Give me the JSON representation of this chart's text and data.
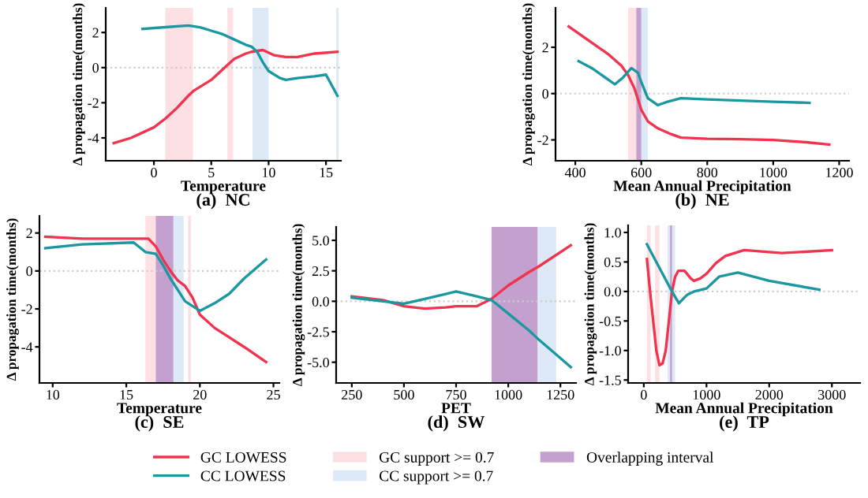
{
  "chart_data": [
    {
      "type": "line",
      "title": "(a)  NC",
      "xlabel": "Temperature",
      "ylabel": "Δ propagation time(months)",
      "legend": "bottom",
      "xlim": [
        -4.2,
        16.3
      ],
      "xticks": [
        0,
        5,
        10,
        15
      ],
      "ylim": [
        -5.3,
        3.4
      ],
      "yticks": [
        -4,
        -2,
        0,
        2
      ],
      "series": [
        {
          "name": "GC LOWESS",
          "color": "#f0344f",
          "x": [
            -3.5,
            -2,
            0,
            1,
            2,
            3,
            3.5,
            5,
            6,
            7,
            8,
            8.5,
            9.5,
            10.5,
            11.5,
            12.5,
            14,
            16
          ],
          "values": [
            -4.3,
            -4.0,
            -3.4,
            -2.9,
            -2.3,
            -1.6,
            -1.3,
            -0.7,
            -0.1,
            0.5,
            0.8,
            0.9,
            1.0,
            0.7,
            0.6,
            0.6,
            0.8,
            0.9
          ]
        },
        {
          "name": "CC LOWESS",
          "color": "#1b97a0",
          "x": [
            -1,
            1,
            3,
            4,
            5,
            6,
            7,
            8,
            8.5,
            9,
            9.5,
            10,
            11,
            11.5,
            12.5,
            14,
            15,
            16
          ],
          "values": [
            2.2,
            2.3,
            2.4,
            2.3,
            2.1,
            1.9,
            1.6,
            1.3,
            1.2,
            0.9,
            0.3,
            -0.2,
            -0.6,
            -0.7,
            -0.6,
            -0.5,
            -0.4,
            -1.6
          ]
        }
      ],
      "bands": [
        {
          "axis": "x",
          "from": 1.0,
          "to": 3.4,
          "color": "#fde0e4",
          "label": "GC support >= 0.7"
        },
        {
          "axis": "x",
          "from": 6.4,
          "to": 6.9,
          "color": "#fde0e4"
        },
        {
          "axis": "x",
          "from": 8.6,
          "to": 10.0,
          "color": "#dde9f6",
          "label": "CC support >= 0.7"
        },
        {
          "axis": "x",
          "from": 15.9,
          "to": 16.1,
          "color": "#dde9f6"
        }
      ],
      "ref_lines": [
        {
          "axis": "y",
          "value": 0,
          "color": "#cccccc",
          "line_style": "dotted"
        }
      ]
    },
    {
      "type": "line",
      "title": "(b)  NE",
      "xlabel": "Mean Annual Precipitation",
      "ylabel": "Δ propagation time(months)",
      "xlim": [
        340,
        1230
      ],
      "xticks": [
        400,
        600,
        800,
        1000,
        1200
      ],
      "ylim": [
        -2.9,
        3.7
      ],
      "yticks": [
        -2,
        0,
        2
      ],
      "series": [
        {
          "color": "#f0344f",
          "x": [
            380,
            420,
            460,
            500,
            540,
            560,
            580,
            600,
            620,
            650,
            690,
            720,
            800,
            900,
            1000,
            1100,
            1170
          ],
          "values": [
            2.9,
            2.5,
            2.1,
            1.7,
            1.2,
            0.8,
            0.2,
            -0.7,
            -1.2,
            -1.5,
            -1.75,
            -1.9,
            -1.95,
            -1.97,
            -2.0,
            -2.1,
            -2.2
          ]
        },
        {
          "color": "#1b97a0",
          "x": [
            410,
            450,
            500,
            520,
            545,
            570,
            590,
            600,
            620,
            650,
            680,
            720,
            800,
            900,
            1000,
            1110
          ],
          "values": [
            1.4,
            1.1,
            0.6,
            0.4,
            0.7,
            1.1,
            0.9,
            0.5,
            -0.2,
            -0.5,
            -0.35,
            -0.2,
            -0.25,
            -0.3,
            -0.35,
            -0.4
          ]
        }
      ],
      "bands": [
        {
          "axis": "x",
          "from": 560,
          "to": 590,
          "color": "#fde0e4"
        },
        {
          "axis": "x",
          "from": 600,
          "to": 620,
          "color": "#dde9f6"
        },
        {
          "axis": "x",
          "from": 585,
          "to": 600,
          "color": "#c4a0cf"
        }
      ],
      "ref_lines": [
        {
          "axis": "y",
          "value": 0,
          "color": "#cccccc",
          "line_style": "dotted"
        }
      ]
    },
    {
      "type": "line",
      "title": "(c)  SE",
      "xlabel": "Temperature",
      "ylabel": "Δ propagation time(months)",
      "xlim": [
        9.1,
        25.4
      ],
      "xticks": [
        10,
        15,
        20,
        25
      ],
      "ylim": [
        -5.9,
        2.9
      ],
      "yticks": [
        -4,
        -2,
        0,
        2
      ],
      "series": [
        {
          "color": "#f0344f",
          "x": [
            9.5,
            12,
            15,
            16.5,
            17,
            17.5,
            18,
            18.5,
            19,
            19.5,
            20,
            21,
            22,
            23,
            24.5
          ],
          "values": [
            1.8,
            1.7,
            1.7,
            1.7,
            1.3,
            0.6,
            0.0,
            -0.5,
            -0.8,
            -1.4,
            -2.3,
            -3.0,
            -3.5,
            -4.0,
            -4.8
          ]
        },
        {
          "color": "#1b97a0",
          "x": [
            9.5,
            12,
            15.5,
            16.3,
            17,
            17.5,
            18,
            18.5,
            19,
            20,
            21,
            22,
            23,
            24.5
          ],
          "values": [
            1.2,
            1.4,
            1.5,
            1.0,
            0.9,
            0.3,
            -0.4,
            -1.0,
            -1.6,
            -2.1,
            -1.7,
            -1.2,
            -0.4,
            0.6
          ]
        }
      ],
      "bands": [
        {
          "axis": "x",
          "from": 16.3,
          "to": 17.0,
          "color": "#fde0e4"
        },
        {
          "axis": "x",
          "from": 19.2,
          "to": 19.4,
          "color": "#fde0e4"
        },
        {
          "axis": "x",
          "from": 18.2,
          "to": 18.9,
          "color": "#dde9f6"
        },
        {
          "axis": "x",
          "from": 17.0,
          "to": 18.2,
          "color": "#c4a0cf"
        }
      ],
      "ref_lines": [
        {
          "axis": "y",
          "value": 0,
          "color": "#cccccc",
          "line_style": "dotted"
        }
      ]
    },
    {
      "type": "line",
      "title": "(d)  SW",
      "xlabel": "PET",
      "ylabel": "Δ propagation time(months)",
      "xlim": [
        175,
        1325
      ],
      "xticks": [
        250,
        500,
        750,
        1000,
        1250
      ],
      "ylim": [
        -6.7,
        6.1
      ],
      "yticks": [
        {
          "value": -5,
          "label": "-5.0"
        },
        {
          "value": -2.5,
          "label": "-2.5"
        },
        {
          "value": 0,
          "label": "0.0"
        },
        {
          "value": 2.5,
          "label": "2.5"
        },
        {
          "value": 5,
          "label": "5.0"
        }
      ],
      "series": [
        {
          "color": "#f0344f",
          "x": [
            250,
            400,
            500,
            600,
            700,
            750,
            850,
            920,
            1000,
            1100,
            1150,
            1300
          ],
          "values": [
            0.4,
            0.1,
            -0.4,
            -0.6,
            -0.5,
            -0.4,
            -0.4,
            0.2,
            1.3,
            2.4,
            2.9,
            4.6
          ]
        },
        {
          "color": "#1b97a0",
          "x": [
            250,
            400,
            500,
            600,
            700,
            750,
            850,
            920,
            1000,
            1100,
            1150,
            1300
          ],
          "values": [
            0.3,
            0.0,
            -0.2,
            0.2,
            0.6,
            0.8,
            0.4,
            0.1,
            -1.0,
            -2.4,
            -3.2,
            -5.4
          ]
        }
      ],
      "bands": [
        {
          "axis": "x",
          "from": 1140,
          "to": 1230,
          "color": "#dde9f6"
        },
        {
          "axis": "x",
          "from": 920,
          "to": 1140,
          "color": "#c4a0cf",
          "label": "Overlapping interval"
        }
      ],
      "ref_lines": [
        {
          "axis": "y",
          "value": 0,
          "color": "#cccccc",
          "line_style": "dotted"
        }
      ]
    },
    {
      "type": "line",
      "title": "(e)  TP",
      "xlabel": "Mean Annual Precipitation",
      "ylabel": "Δ propagation time(months)",
      "xlim": [
        -250,
        3450
      ],
      "xticks": [
        0,
        1000,
        2000,
        3000
      ],
      "ylim": [
        -1.55,
        1.12
      ],
      "yticks": [
        {
          "value": -1.5,
          "label": "-1.5"
        },
        {
          "value": -1,
          "label": "-1.0"
        },
        {
          "value": -0.5,
          "label": "-0.5"
        },
        {
          "value": 0,
          "label": "0.0"
        },
        {
          "value": 0.5,
          "label": "0.5"
        },
        {
          "value": 1,
          "label": "1.0"
        }
      ],
      "series": [
        {
          "color": "#f0344f",
          "x": [
            50,
            100,
            150,
            200,
            250,
            300,
            350,
            400,
            450,
            500,
            550,
            650,
            750,
            800,
            900,
            1000,
            1150,
            1300,
            1600,
            2200,
            3000
          ],
          "values": [
            0.55,
            0.0,
            -0.5,
            -1.0,
            -1.25,
            -1.22,
            -1.0,
            -0.5,
            0.0,
            0.25,
            0.35,
            0.35,
            0.22,
            0.18,
            0.22,
            0.3,
            0.48,
            0.6,
            0.7,
            0.65,
            0.7
          ]
        },
        {
          "color": "#1b97a0",
          "x": [
            50,
            150,
            300,
            450,
            560,
            650,
            700,
            800,
            1000,
            1200,
            1500,
            2000,
            2800
          ],
          "values": [
            0.8,
            0.6,
            0.3,
            0.0,
            -0.2,
            -0.1,
            -0.05,
            0.0,
            0.05,
            0.25,
            0.32,
            0.18,
            0.03
          ]
        }
      ],
      "bands": [
        {
          "axis": "x",
          "from": 50,
          "to": 110,
          "color": "#fde0e4"
        },
        {
          "axis": "x",
          "from": 180,
          "to": 250,
          "color": "#fde0e4"
        },
        {
          "axis": "x",
          "from": 380,
          "to": 500,
          "color": "#dde9f6"
        },
        {
          "axis": "x",
          "from": 420,
          "to": 450,
          "color": "#c4a0cf"
        }
      ],
      "ref_lines": [
        {
          "axis": "y",
          "value": 0,
          "color": "#cccccc",
          "line_style": "dotted"
        }
      ]
    }
  ]
}
